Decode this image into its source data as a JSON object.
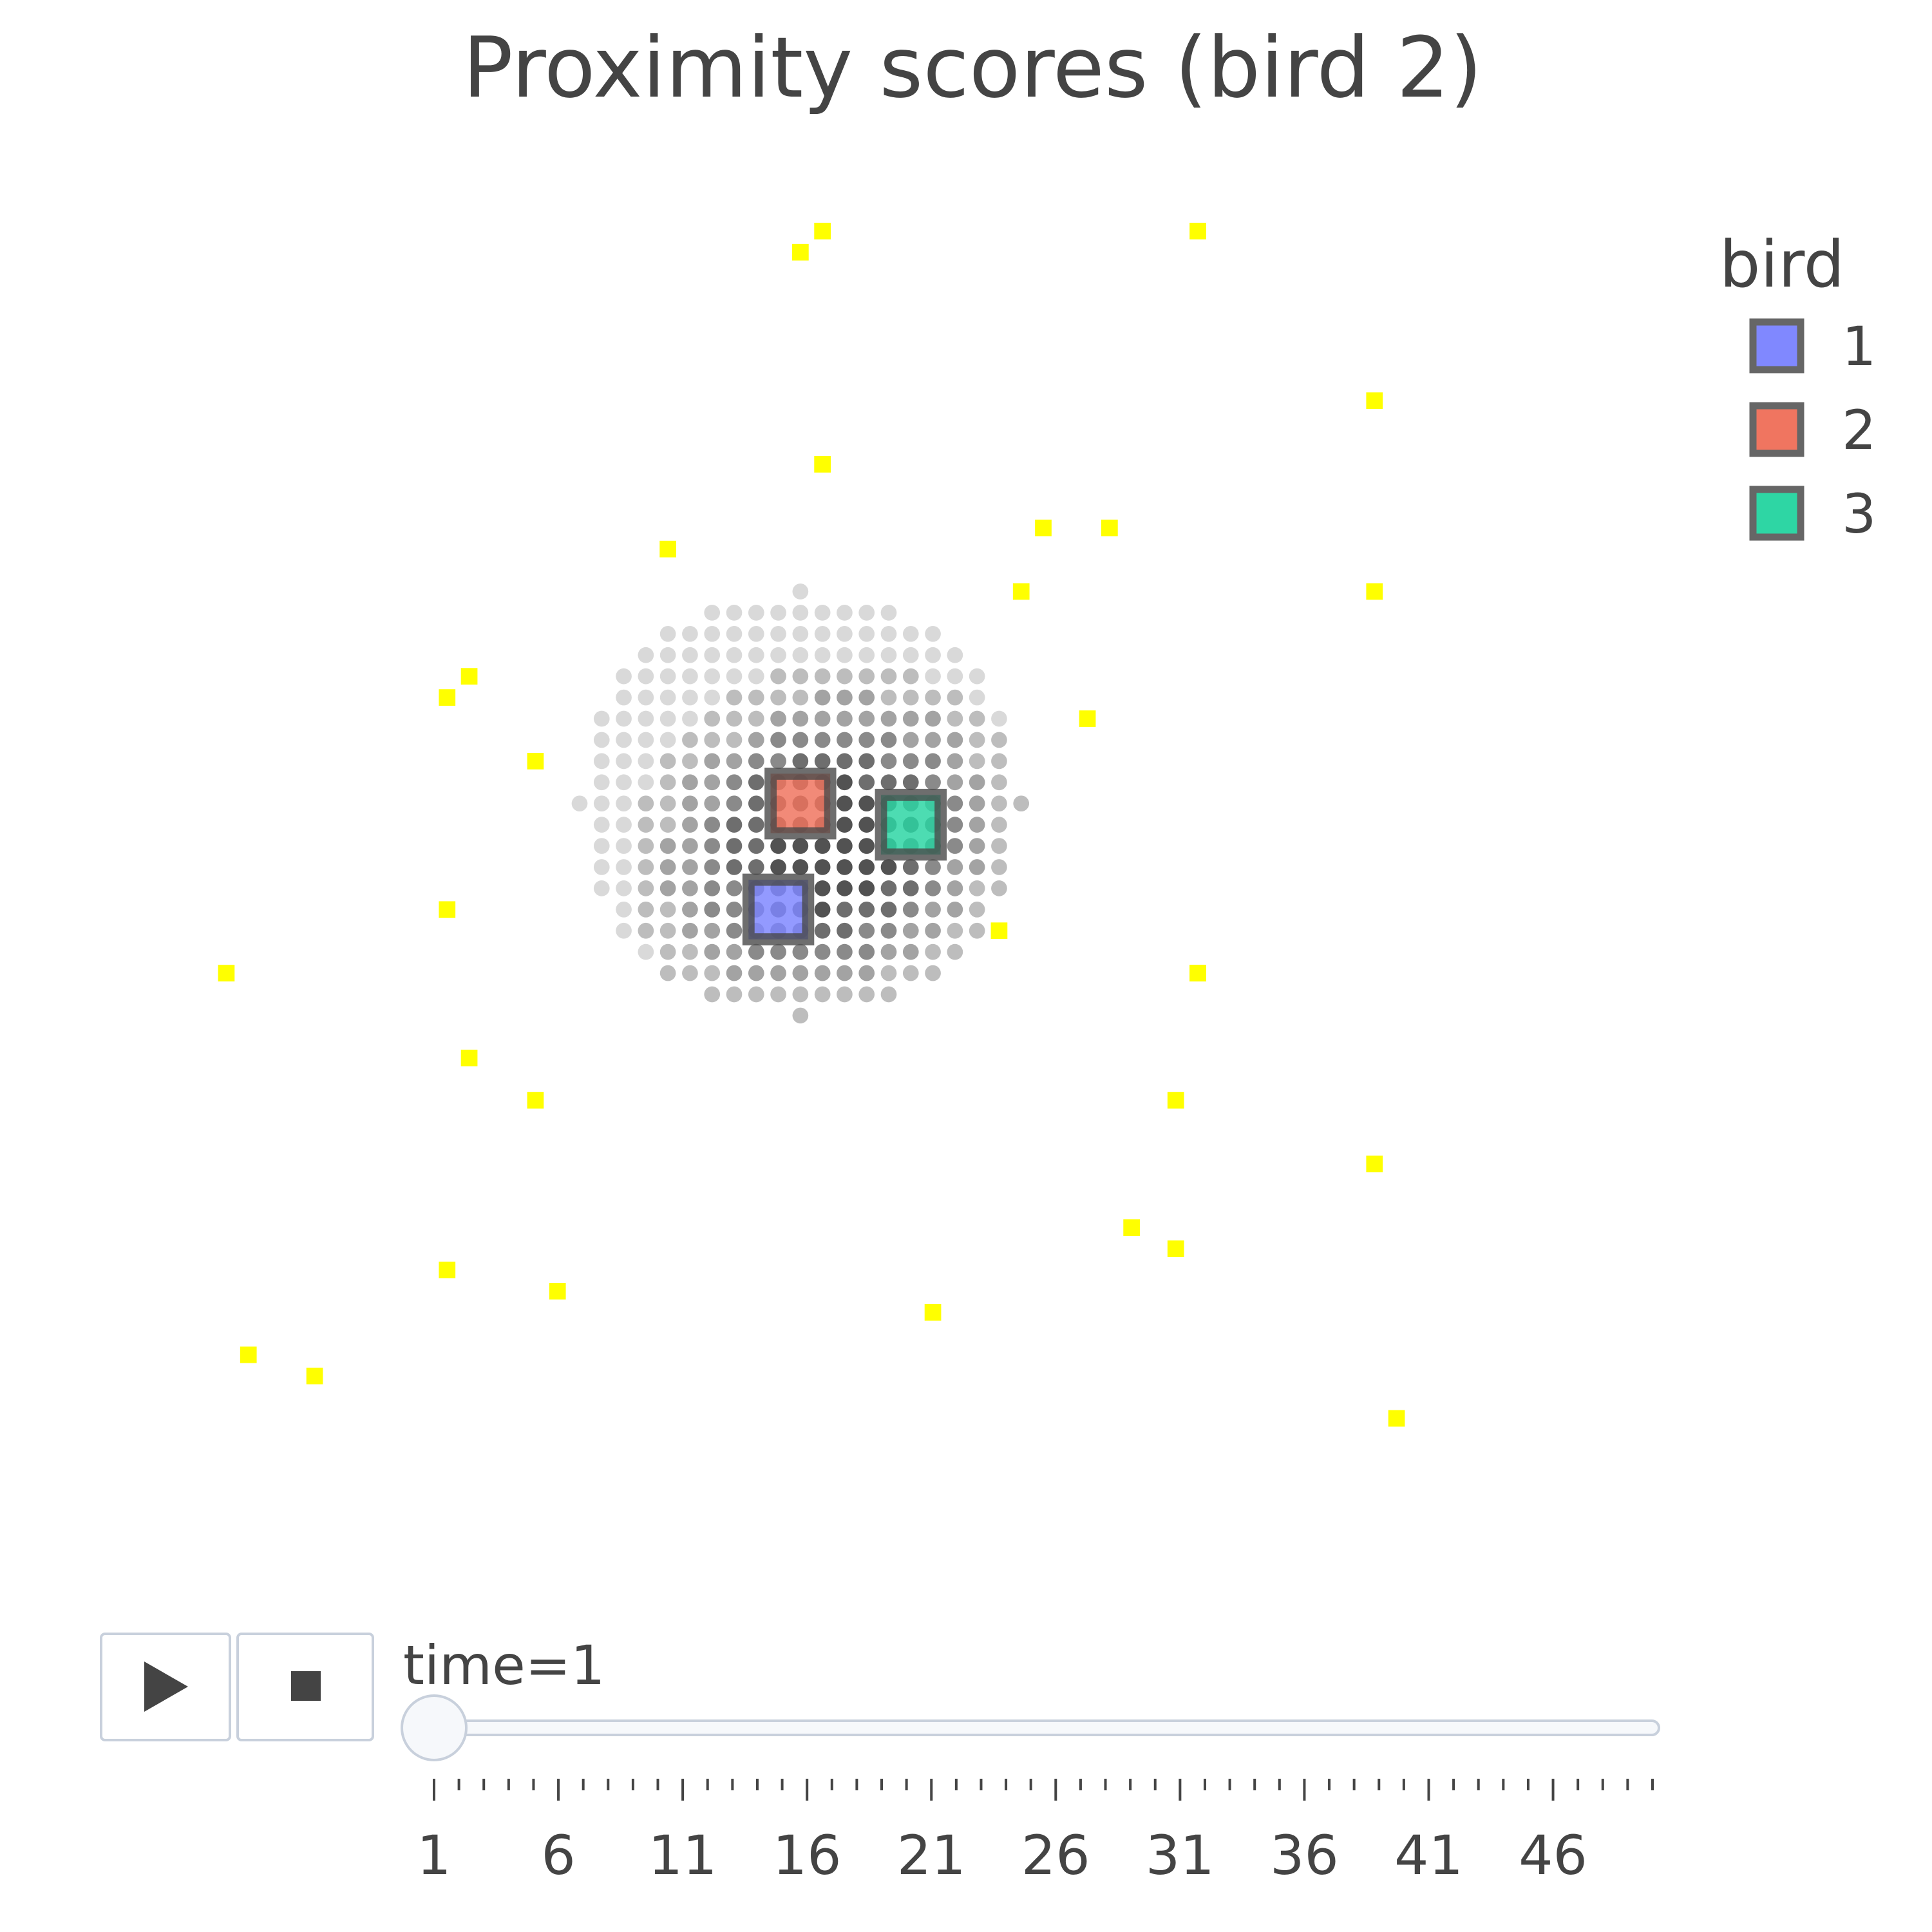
{
  "chart_data": {
    "type": "scatter",
    "title": "Proximity scores (bird 2)",
    "legend": {
      "title": "bird",
      "placement": "top-right",
      "entries": [
        {
          "label": "1",
          "color": "#8088FF"
        },
        {
          "label": "2",
          "color": "#F07560"
        },
        {
          "label": "3",
          "color": "#2ED6A4"
        }
      ]
    },
    "birds": [
      {
        "name": "1",
        "x": 0,
        "y": -5,
        "color": "#8088FF"
      },
      {
        "name": "2",
        "x": 1,
        "y": 0,
        "color": "#F07560"
      },
      {
        "name": "3",
        "x": 6,
        "y": -1,
        "color": "#2ED6A4"
      }
    ],
    "food": {
      "color": "#FFFF00",
      "points": [
        [
          2,
          27
        ],
        [
          1,
          26
        ],
        [
          19,
          27
        ],
        [
          27,
          19
        ],
        [
          2,
          16
        ],
        [
          -5,
          12
        ],
        [
          -11,
          2
        ],
        [
          -14,
          6
        ],
        [
          -15,
          5
        ],
        [
          -15,
          -5
        ],
        [
          -25,
          -8
        ],
        [
          -14,
          -12
        ],
        [
          -11,
          -14
        ],
        [
          -15,
          -22
        ],
        [
          -24,
          -26
        ],
        [
          -21,
          -27
        ],
        [
          -10,
          -23
        ],
        [
          7,
          -24
        ],
        [
          16,
          -20
        ],
        [
          18,
          -21
        ],
        [
          19,
          -8
        ],
        [
          18,
          -14
        ],
        [
          27,
          -17
        ],
        [
          28,
          -29
        ],
        [
          10,
          -6
        ],
        [
          19,
          -8
        ],
        [
          14,
          4
        ],
        [
          11,
          10
        ],
        [
          15,
          13
        ],
        [
          12,
          13
        ],
        [
          27,
          10
        ]
      ]
    },
    "proximity_grid": {
      "center": [
        1,
        0
      ],
      "radius": 10,
      "levels": [
        "#d9d9d9",
        "#bdbdbd",
        "#a3a3a3",
        "#8a8a8a",
        "#6e6e6e",
        "#525252"
      ]
    },
    "slider": {
      "current_label": "time=1",
      "tick_labels": [
        "1",
        "6",
        "11",
        "16",
        "21",
        "26",
        "31",
        "36",
        "41",
        "46"
      ],
      "min": 1,
      "max": 50,
      "value": 1
    },
    "controls": {
      "play": "play-icon",
      "stop": "stop-icon"
    },
    "xlim": [
      -30,
      40
    ],
    "ylim": [
      -35,
      30
    ],
    "grid": false
  }
}
